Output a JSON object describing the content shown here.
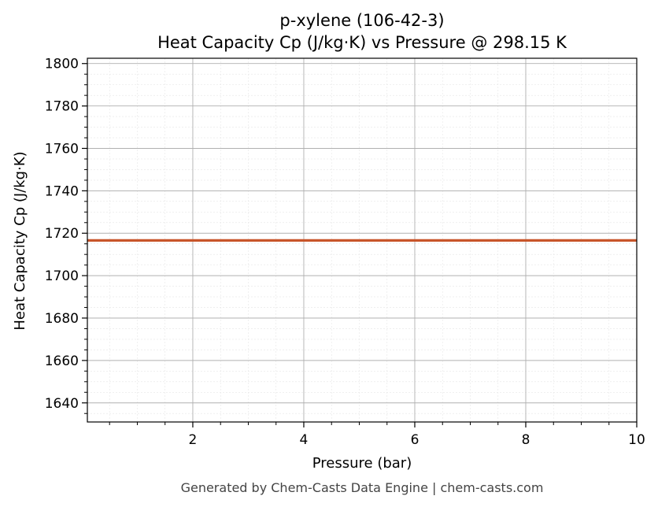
{
  "chart_data": {
    "type": "line",
    "title": "p-xylene (106-42-3)",
    "subtitle": "Heat Capacity Cp (J/kg·K) vs Pressure @ 298.15 K",
    "xlabel": "Pressure (bar)",
    "ylabel": "Heat Capacity Cp (J/kg·K)",
    "xlim": [
      0.1,
      10
    ],
    "ylim": [
      1631,
      1802.5
    ],
    "x_ticks": [
      2,
      4,
      6,
      8,
      10
    ],
    "y_ticks": [
      1640,
      1660,
      1680,
      1700,
      1720,
      1740,
      1760,
      1780,
      1800
    ],
    "grid": true,
    "series": [
      {
        "x": [
          0.1,
          1,
          2,
          3,
          4,
          5,
          6,
          7,
          8,
          9,
          10
        ],
        "y": [
          1716.6,
          1716.6,
          1716.6,
          1716.6,
          1716.6,
          1716.6,
          1716.6,
          1716.6,
          1716.6,
          1716.6,
          1716.6
        ],
        "color": "#c8552a"
      }
    ],
    "footer": "Generated by Chem-Casts Data Engine | chem-casts.com"
  }
}
